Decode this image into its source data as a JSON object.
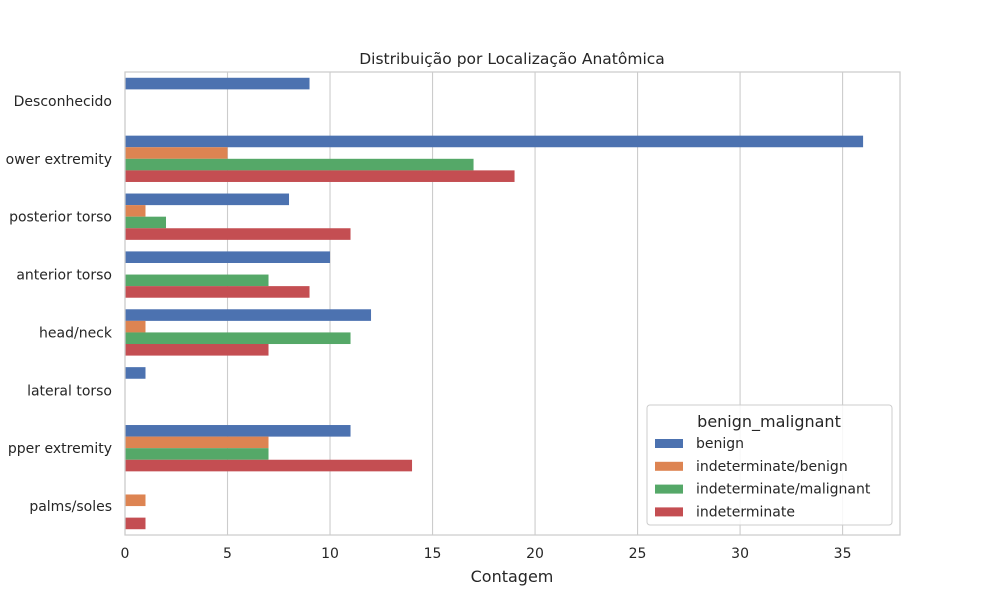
{
  "chart_data": {
    "type": "bar",
    "orientation": "horizontal",
    "title": "Distribuição por Localização Anatômica",
    "xlabel": "Contagem",
    "ylabel": "",
    "xlim": [
      0,
      37.8
    ],
    "xticks": [
      0,
      5,
      10,
      15,
      20,
      25,
      30,
      35
    ],
    "grid": "vertical",
    "categories": [
      "Desconhecido",
      "lower extremity",
      "posterior torso",
      "anterior torso",
      "head/neck",
      "lateral torso",
      "upper extremity",
      "palms/soles"
    ],
    "category_labels_shown": [
      "Desconhecido",
      "ower extremity",
      "posterior torso",
      "anterior torso",
      "head/neck",
      "lateral torso",
      "pper extremity",
      "palms/soles"
    ],
    "series": [
      {
        "name": "benign",
        "color": "#4c72b0",
        "values": [
          9,
          36,
          8,
          10,
          12,
          1,
          11,
          0
        ]
      },
      {
        "name": "indeterminate/benign",
        "color": "#dd8452",
        "values": [
          0,
          5,
          1,
          0,
          1,
          0,
          7,
          1
        ]
      },
      {
        "name": "indeterminate/malignant",
        "color": "#55a868",
        "values": [
          0,
          17,
          2,
          7,
          11,
          0,
          7,
          0
        ]
      },
      {
        "name": "indeterminate",
        "color": "#c44e52",
        "values": [
          0,
          19,
          11,
          9,
          7,
          0,
          14,
          1
        ]
      }
    ],
    "legend": {
      "title": "benign_malignant",
      "placement": "bottom-right"
    }
  }
}
